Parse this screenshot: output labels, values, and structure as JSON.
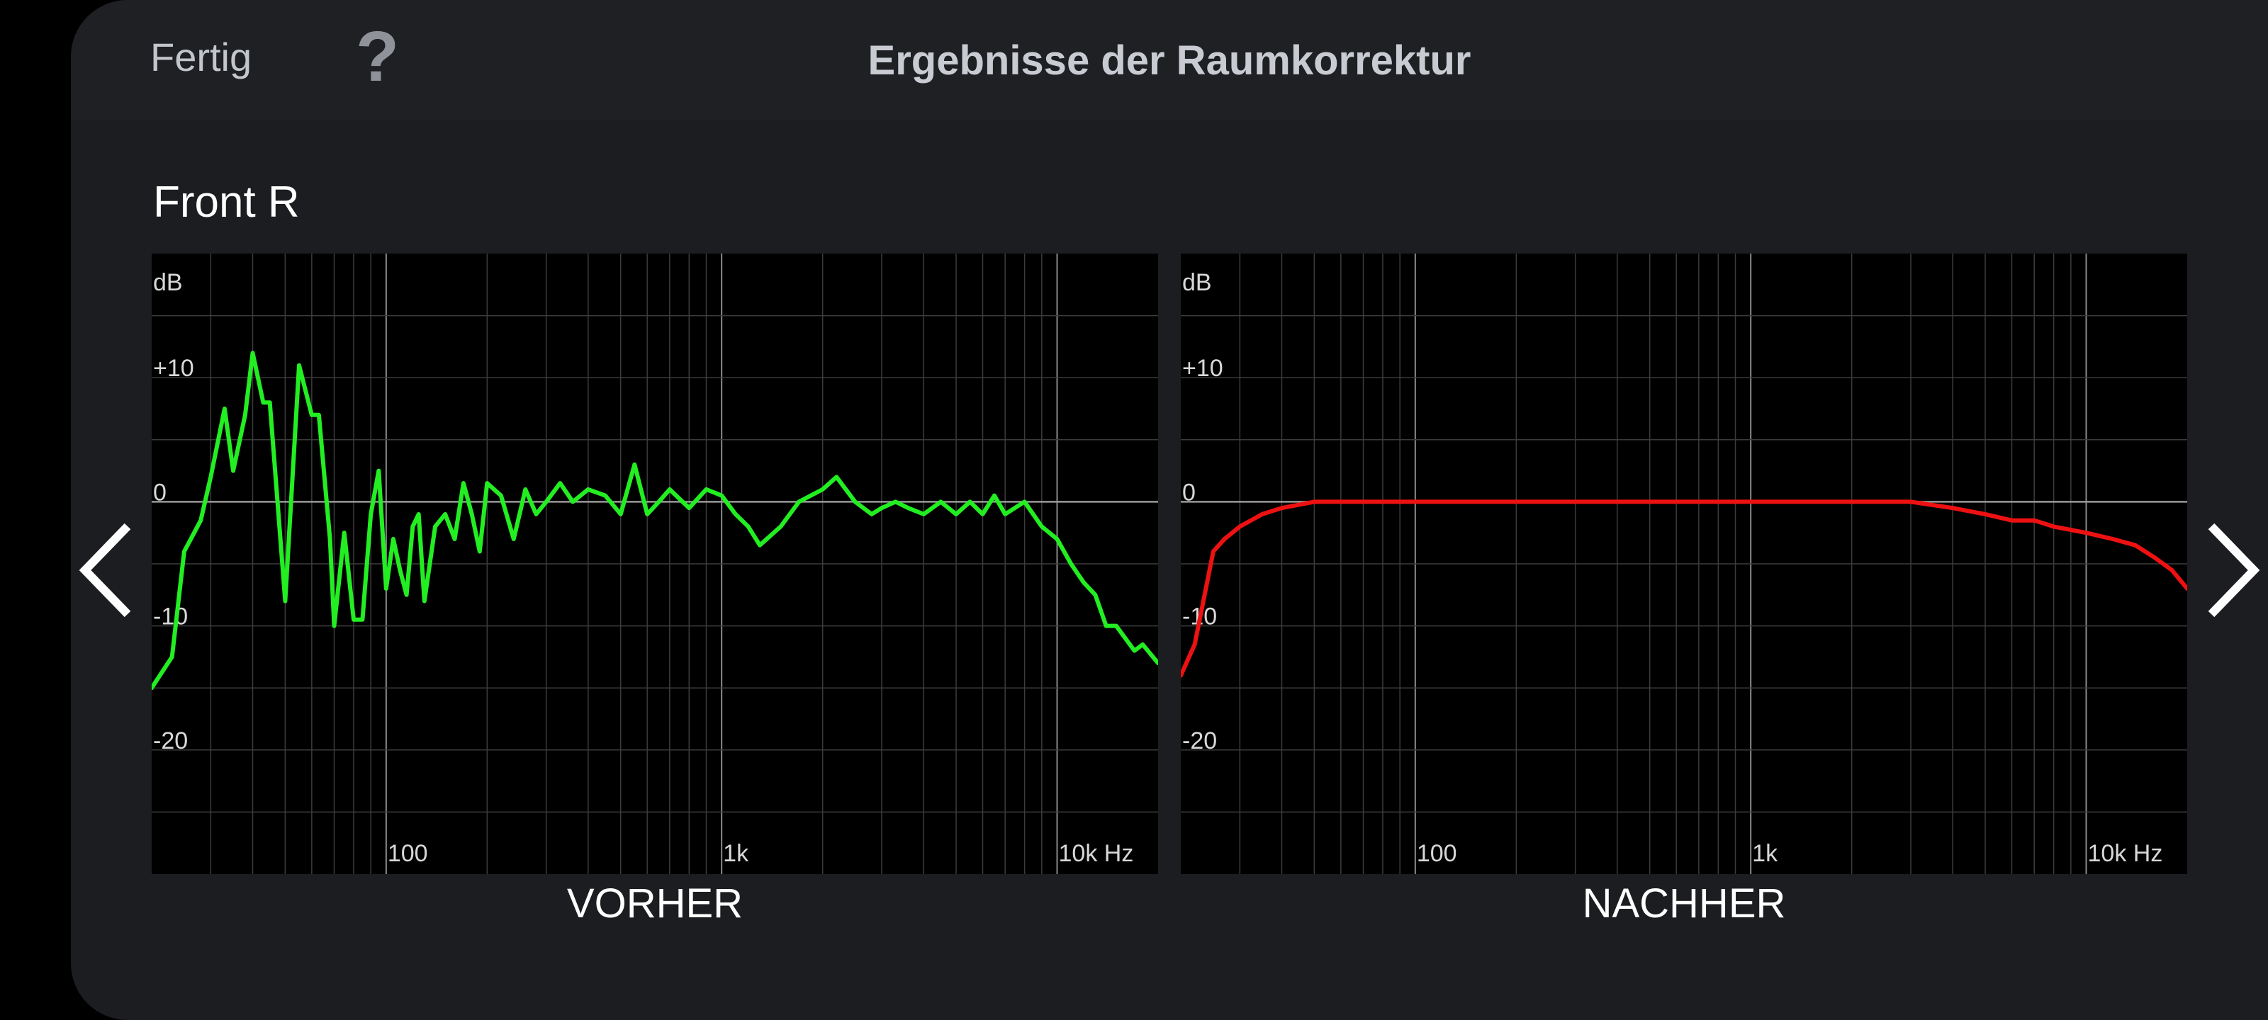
{
  "header": {
    "done_label": "Fertig",
    "help_icon": "?",
    "title": "Ergebnisse der Raumkorrektur"
  },
  "channel": "Front R",
  "navigation": {
    "prev_icon": "chevron-left-icon",
    "next_icon": "chevron-right-icon"
  },
  "colors": {
    "before_line": "#22ee22",
    "after_line": "#ee1111",
    "chart_bg": "#000000",
    "panel_bg": "#1c1d20"
  },
  "chart_data": [
    {
      "type": "line",
      "xlabel": "Hz",
      "ylabel": "dB",
      "x_scale": "log",
      "xlim": [
        20,
        20000
      ],
      "ylim": [
        -30,
        20
      ],
      "x_ticks": [
        "100",
        "1k",
        "10k Hz"
      ],
      "y_ticks": [
        "+10",
        "0",
        "-10",
        "-20"
      ],
      "caption": "VORHER",
      "series": [
        {
          "color": "#22ee22",
          "x": [
            20,
            23,
            25,
            28,
            30,
            33,
            35,
            38,
            40,
            43,
            45,
            50,
            55,
            60,
            63,
            68,
            70,
            75,
            80,
            85,
            90,
            95,
            100,
            105,
            110,
            115,
            120,
            125,
            130,
            140,
            150,
            160,
            170,
            180,
            190,
            200,
            220,
            240,
            260,
            280,
            300,
            330,
            360,
            400,
            450,
            500,
            550,
            600,
            650,
            700,
            800,
            900,
            1000,
            1100,
            1200,
            1300,
            1500,
            1700,
            2000,
            2200,
            2500,
            2800,
            3000,
            3300,
            3600,
            4000,
            4500,
            5000,
            5500,
            6000,
            6500,
            7000,
            8000,
            9000,
            10000,
            11000,
            12000,
            13000,
            14000,
            15000,
            17000,
            18000,
            20000
          ],
          "y": [
            -15,
            -12.5,
            -4,
            -1.5,
            2,
            7.5,
            2.5,
            7,
            12,
            8,
            8,
            -8,
            11,
            7,
            7,
            -3,
            -10,
            -2.5,
            -9.5,
            -9.5,
            -1,
            2.5,
            -7,
            -3,
            -5.5,
            -7.5,
            -2,
            -1,
            -8,
            -2,
            -1,
            -3,
            1.5,
            -1,
            -4,
            1.5,
            0.5,
            -3,
            1,
            -1,
            0,
            1.5,
            0,
            1,
            0.5,
            -1,
            3,
            -1,
            0,
            1,
            -0.5,
            1,
            0.5,
            -1,
            -2,
            -3.5,
            -2,
            0,
            1,
            2,
            0,
            -1,
            -0.5,
            0,
            -0.5,
            -1,
            0,
            -1,
            0,
            -1,
            0.5,
            -1,
            0,
            -2,
            -3,
            -5,
            -6.5,
            -7.5,
            -10,
            -10,
            -12,
            -11.5,
            -13
          ]
        }
      ]
    },
    {
      "type": "line",
      "xlabel": "Hz",
      "ylabel": "dB",
      "x_scale": "log",
      "xlim": [
        20,
        20000
      ],
      "ylim": [
        -30,
        20
      ],
      "x_ticks": [
        "100",
        "1k",
        "10k Hz"
      ],
      "y_ticks": [
        "+10",
        "0",
        "-10",
        "-20"
      ],
      "caption": "NACHHER",
      "series": [
        {
          "color": "#ee1111",
          "x": [
            20,
            22,
            25,
            27,
            30,
            35,
            40,
            50,
            60,
            70,
            80,
            100,
            150,
            200,
            300,
            500,
            1000,
            2000,
            3000,
            4000,
            5000,
            6000,
            7000,
            8000,
            10000,
            12000,
            14000,
            16000,
            18000,
            20000
          ],
          "y": [
            -14,
            -11.5,
            -4,
            -3,
            -2,
            -1,
            -0.5,
            0,
            0,
            0,
            0,
            0,
            0,
            0,
            0,
            0,
            0,
            0,
            0,
            -0.5,
            -1,
            -1.5,
            -1.5,
            -2,
            -2.5,
            -3,
            -3.5,
            -4.5,
            -5.5,
            -7
          ]
        }
      ]
    }
  ]
}
